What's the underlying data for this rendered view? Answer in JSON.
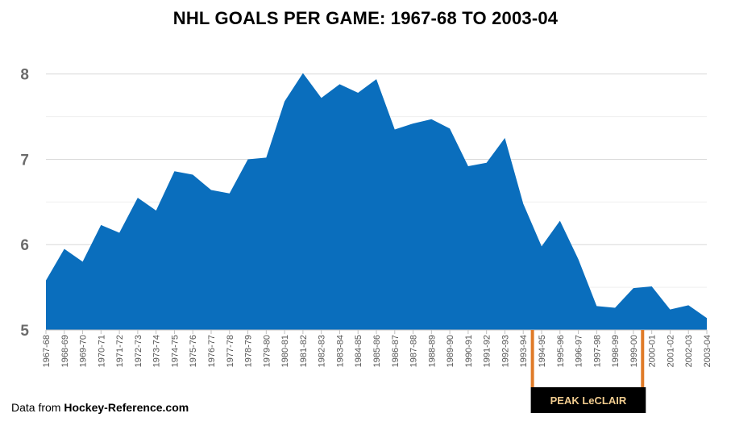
{
  "chart_data": {
    "type": "area",
    "title": "NHL GOALS PER GAME: 1967-68 TO 2003-04",
    "xlabel": "",
    "ylabel": "",
    "ylim": [
      5,
      8.3
    ],
    "yticks": [
      5,
      6,
      7,
      8
    ],
    "grid": true,
    "categories": [
      "1967-68",
      "1968-69",
      "1969-70",
      "1970-71",
      "1971-72",
      "1972-73",
      "1973-74",
      "1974-75",
      "1975-76",
      "1976-77",
      "1977-78",
      "1978-79",
      "1979-80",
      "1980-81",
      "1981-82",
      "1982-83",
      "1983-84",
      "1984-85",
      "1985-86",
      "1986-87",
      "1987-88",
      "1988-89",
      "1989-90",
      "1990-91",
      "1991-92",
      "1992-93",
      "1993-94",
      "1994-95",
      "1995-96",
      "1996-97",
      "1997-98",
      "1998-99",
      "1999-00",
      "2000-01",
      "2001-02",
      "2002-03",
      "2003-04"
    ],
    "series": [
      {
        "values": [
          5.58,
          5.95,
          5.8,
          6.23,
          6.14,
          6.55,
          6.4,
          6.86,
          6.82,
          6.64,
          6.6,
          7.0,
          7.02,
          7.68,
          8.01,
          7.72,
          7.88,
          7.78,
          7.94,
          7.35,
          7.42,
          7.47,
          7.36,
          6.92,
          6.96,
          7.25,
          6.48,
          5.98,
          6.28,
          5.83,
          5.28,
          5.26,
          5.49,
          5.51,
          5.24,
          5.29,
          5.14
        ]
      }
    ],
    "annotation": {
      "label": "PEAK LeCLAIR",
      "start": "1993-94",
      "end": "2000-01"
    },
    "colors": {
      "area": "#0a6ebd",
      "bracket": "#e07b28",
      "label_bg": "#000000",
      "label_text": "#f1cc8f",
      "grid": "#d9d9d9",
      "tick_text": "#555555"
    }
  },
  "source": {
    "prefix": "Data from ",
    "name": "Hockey-Reference.com"
  }
}
